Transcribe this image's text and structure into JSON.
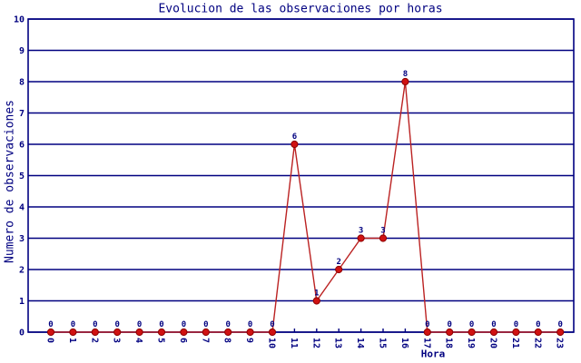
{
  "chart_data": {
    "type": "line",
    "title": "Evolucion de las observaciones por horas",
    "xlabel": "Hora",
    "ylabel": "Numero de observaciones",
    "categories": [
      "0",
      "1",
      "2",
      "3",
      "4",
      "5",
      "6",
      "7",
      "8",
      "9",
      "10",
      "11",
      "12",
      "13",
      "14",
      "15",
      "16",
      "17",
      "18",
      "19",
      "20",
      "21",
      "22",
      "23"
    ],
    "series": [
      {
        "name": "observaciones",
        "values": [
          0,
          0,
          0,
          0,
          0,
          0,
          0,
          0,
          0,
          0,
          0,
          6,
          1,
          2,
          3,
          3,
          8,
          0,
          0,
          0,
          0,
          0,
          0,
          0
        ]
      }
    ],
    "point_labels_visible": true,
    "ylim": [
      0,
      10
    ],
    "yticks": [
      0,
      1,
      2,
      3,
      4,
      5,
      6,
      7,
      8,
      9,
      10
    ],
    "grid": "horizontal",
    "legend": "none",
    "colors": {
      "line": "#bb2222",
      "marker": "#d01212",
      "marker_edge": "#8b0000",
      "axis": "#000080",
      "text": "#000080",
      "background": "#ffffff"
    }
  }
}
